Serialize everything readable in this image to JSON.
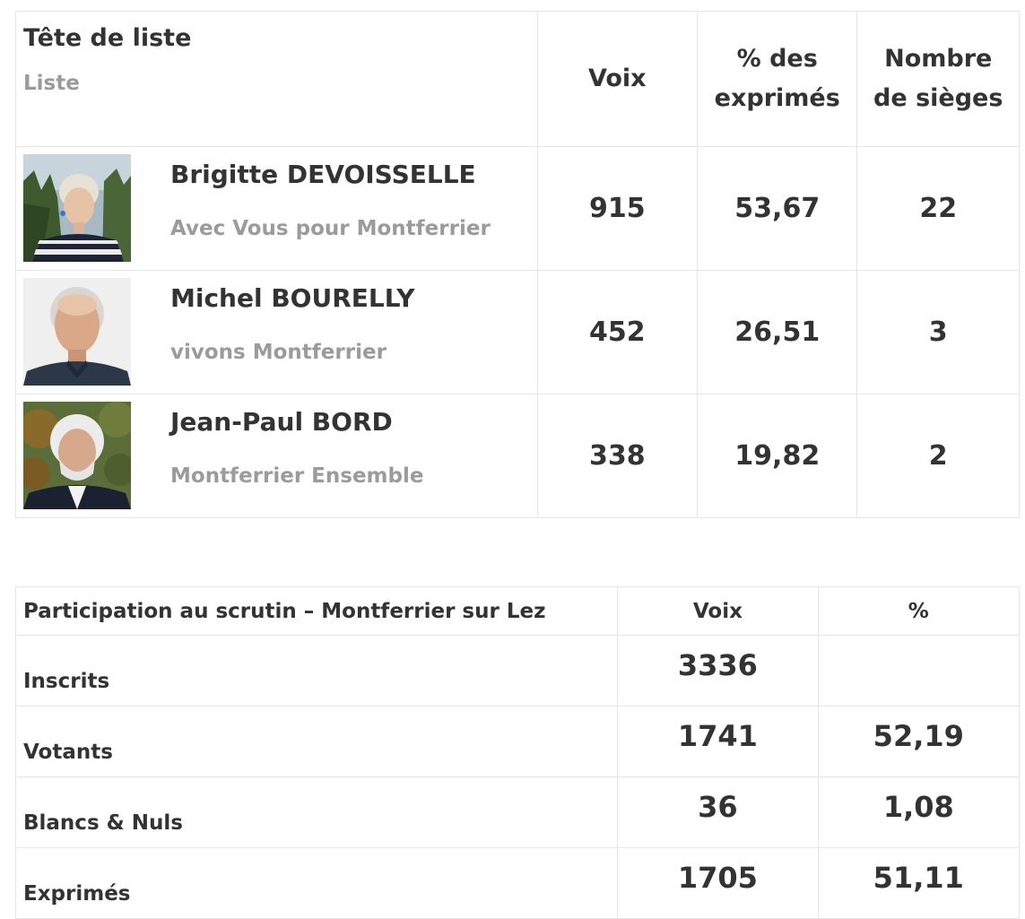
{
  "results": {
    "headers": {
      "candidate": "Tête de liste",
      "list": "Liste",
      "votes": "Voix",
      "percent_line1": "% des",
      "percent_line2": "exprimés",
      "seats_line1": "Nombre",
      "seats_line2": "de sièges"
    },
    "rows": [
      {
        "name": "Brigitte DEVOISSELLE",
        "list": "Avec Vous pour Montferrier",
        "votes": "915",
        "percent": "53,67",
        "seats": "22"
      },
      {
        "name": "Michel BOURELLY",
        "list": "vivons Montferrier",
        "votes": "452",
        "percent": "26,51",
        "seats": "3"
      },
      {
        "name": "Jean-Paul BORD",
        "list": "Montferrier Ensemble",
        "votes": "338",
        "percent": "19,82",
        "seats": "2"
      }
    ]
  },
  "participation": {
    "title": "Participation au scrutin – Montferrier sur Lez",
    "votes_header": "Voix",
    "percent_header": "%",
    "rows": [
      {
        "label": "Inscrits",
        "votes": "3336",
        "percent": ""
      },
      {
        "label": "Votants",
        "votes": "1741",
        "percent": "52,19"
      },
      {
        "label": "Blancs & Nuls",
        "votes": "36",
        "percent": "1,08"
      },
      {
        "label": "Exprimés",
        "votes": "1705",
        "percent": "51,11"
      }
    ]
  }
}
